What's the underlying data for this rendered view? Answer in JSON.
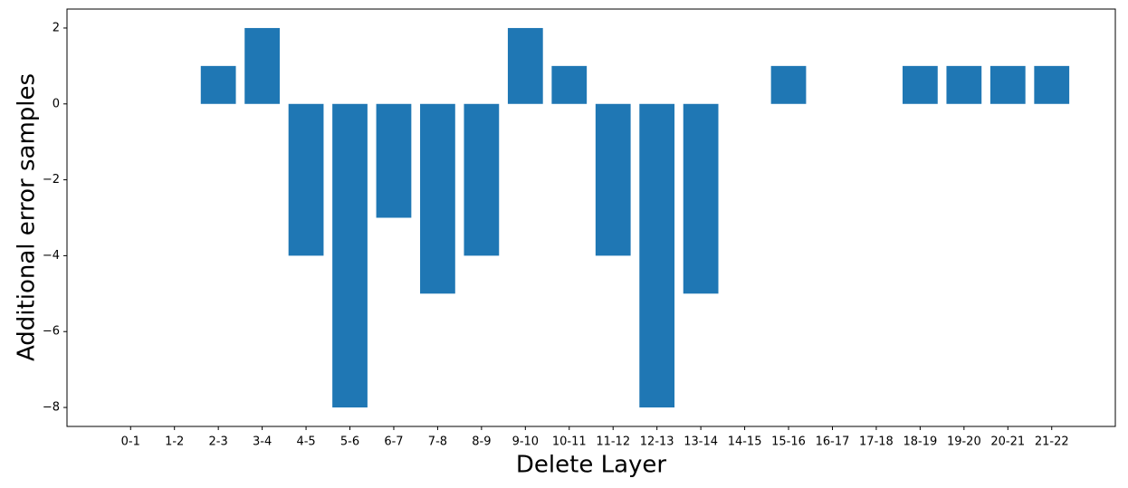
{
  "chart_data": {
    "type": "bar",
    "xlabel": "Delete Layer",
    "ylabel": "Additional error samples",
    "categories": [
      "0-1",
      "1-2",
      "2-3",
      "3-4",
      "4-5",
      "5-6",
      "6-7",
      "7-8",
      "8-9",
      "9-10",
      "10-11",
      "11-12",
      "12-13",
      "13-14",
      "14-15",
      "15-16",
      "16-17",
      "17-18",
      "18-19",
      "19-20",
      "20-21",
      "21-22"
    ],
    "values": [
      0,
      0,
      1,
      2,
      -4,
      -8,
      -3,
      -5,
      -4,
      2,
      1,
      -4,
      -8,
      -5,
      0,
      1,
      0,
      0,
      1,
      1,
      1,
      1
    ],
    "color": "#1f77b4",
    "ylim": [
      -8.5,
      2.5
    ],
    "yticks": [
      {
        "value": -8,
        "label": "−8"
      },
      {
        "value": -6,
        "label": "−6"
      },
      {
        "value": -4,
        "label": "−4"
      },
      {
        "value": -2,
        "label": "−2"
      },
      0,
      2
    ],
    "grid": false
  }
}
